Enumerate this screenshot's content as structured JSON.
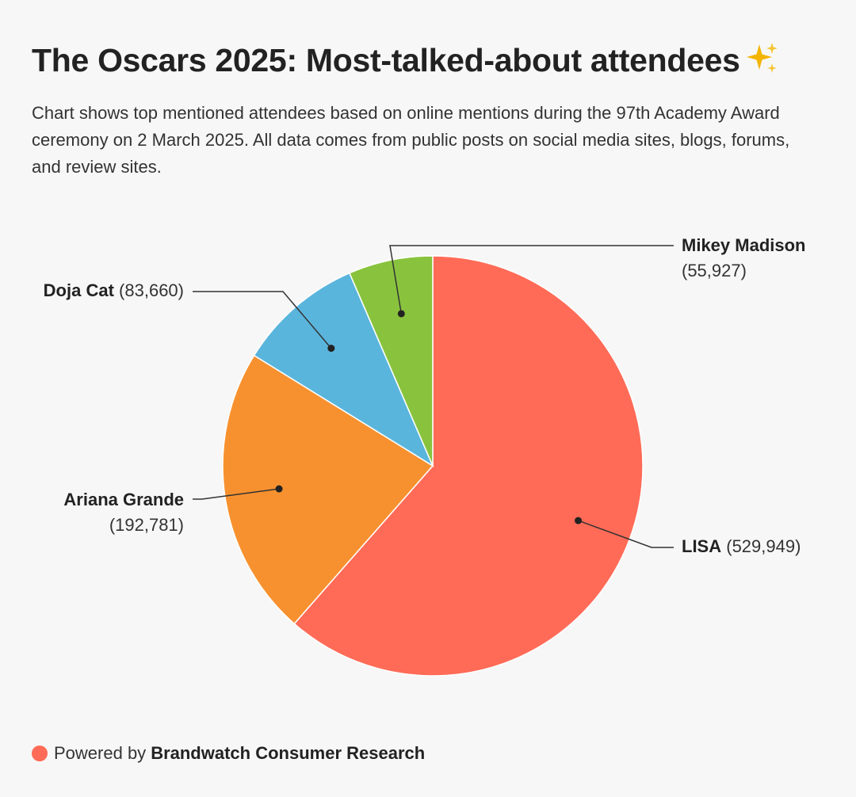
{
  "title": "The Oscars 2025: Most-talked-about attendees",
  "title_icon": "sparkles-icon",
  "subtitle": "Chart shows top mentioned attendees based on online mentions during the 97th Academy Award ceremony on 2 March 2025. All data comes from public posts on social media sites, blogs, forums, and review sites.",
  "footer": {
    "prefix": "Powered by",
    "brand": "Brandwatch Consumer Research",
    "dot_color": "#ff6b57"
  },
  "chart_data": {
    "type": "pie",
    "title": "The Oscars 2025: Most-talked-about attendees",
    "start": "12 o'clock",
    "direction": "clockwise",
    "slices": [
      {
        "label": "LISA",
        "value": 529949,
        "value_text": "(529,949)",
        "color": "#ff6b57"
      },
      {
        "label": "Ariana Grande",
        "value": 192781,
        "value_text": "(192,781)",
        "color": "#f7912f"
      },
      {
        "label": "Doja Cat",
        "value": 83660,
        "value_text": "(83,660)",
        "color": "#5ab5dd"
      },
      {
        "label": "Mikey Madison",
        "value": 55927,
        "value_text": "(55,927)",
        "color": "#89c33e"
      }
    ]
  }
}
